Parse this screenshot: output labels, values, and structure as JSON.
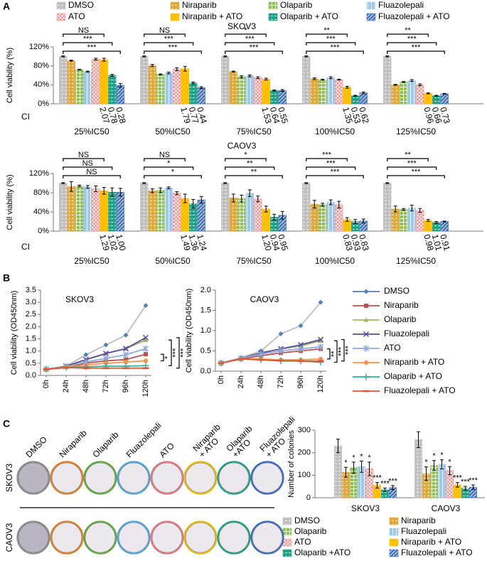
{
  "chart_data": [
    {
      "type": "bar",
      "panel": "A",
      "title": "SKOV3",
      "y_label": "Cell viability (%)",
      "ci_label": "CI",
      "legend": "top",
      "categories": [
        "25%IC50",
        "50%IC50",
        "75%IC50",
        "100%IC50",
        "125%IC50"
      ],
      "ylim": [
        0,
        120
      ],
      "yticks": [
        {
          "value": 0,
          "label": "0%"
        },
        {
          "value": 40,
          "label": "40%"
        },
        {
          "value": 80,
          "label": "80%"
        },
        {
          "value": 120,
          "label": "120%"
        }
      ],
      "series": [
        {
          "name": "DMSO",
          "color": "#c0c0c0",
          "pattern": "dots",
          "values": [
            100,
            100,
            100,
            100,
            100
          ],
          "errors": [
            1,
            1,
            1,
            1,
            1
          ]
        },
        {
          "name": "Niraparib",
          "color": "#e0a93b",
          "pattern": "dots",
          "values": [
            91,
            81,
            68,
            53,
            40
          ],
          "errors": [
            1,
            2,
            1,
            2,
            1
          ]
        },
        {
          "name": "Olaparib",
          "color": "#8cc152",
          "pattern": "grid",
          "values": [
            72,
            62,
            57,
            51,
            46
          ],
          "errors": [
            1,
            1,
            2,
            1,
            1
          ]
        },
        {
          "name": "Fluazolepali",
          "color": "#9cc8ee",
          "pattern": "vstripes",
          "values": [
            68,
            65,
            59,
            55,
            49
          ],
          "errors": [
            1,
            2,
            2,
            2,
            2
          ]
        },
        {
          "name": "ATO",
          "color": "#f28b8b",
          "pattern": "check",
          "values": [
            94,
            73,
            55,
            51,
            40
          ],
          "errors": [
            2,
            3,
            2,
            1,
            2
          ]
        },
        {
          "name": "Niraparib + ATO",
          "color": "#ffc000",
          "pattern": "solid",
          "values": [
            93,
            74,
            52,
            35,
            22
          ],
          "errors": [
            3,
            5,
            2,
            2,
            1
          ]
        },
        {
          "name": "Olaparib + ATO",
          "color": "#1ea387",
          "pattern": "dash",
          "values": [
            60,
            44,
            28,
            17,
            17
          ],
          "errors": [
            2,
            2,
            1,
            1,
            1
          ]
        },
        {
          "name": "Fluazolepali + ATO",
          "color": "#4472c4",
          "pattern": "diag",
          "values": [
            39,
            34,
            28,
            23,
            21
          ],
          "errors": [
            4,
            2,
            2,
            2,
            1
          ]
        }
      ],
      "ci_values": [
        [
          2.07,
          0.78,
          0.28
        ],
        [
          1.79,
          0.77,
          0.44
        ],
        [
          1.53,
          0.64,
          0.55
        ],
        [
          1.35,
          0.53,
          0.62
        ],
        [
          0.96,
          0.66,
          0.73
        ]
      ],
      "significance": [
        [
          "NS",
          "***",
          "***"
        ],
        [
          "NS",
          "***",
          "***"
        ],
        [
          "*",
          "***",
          "***"
        ],
        [
          "**",
          "***",
          "***"
        ],
        [
          "**",
          "***",
          "***"
        ]
      ]
    },
    {
      "type": "bar",
      "title": "CAOV3",
      "y_label": "Cell viability (%)",
      "ci_label": "CI",
      "categories": [
        "25%IC50",
        "50%IC50",
        "75%IC50",
        "100%IC50",
        "125%IC50"
      ],
      "ylim": [
        0,
        120
      ],
      "yticks": [
        {
          "value": 0,
          "label": "0%"
        },
        {
          "value": 40,
          "label": "40%"
        },
        {
          "value": 80,
          "label": "80%"
        },
        {
          "value": 120,
          "label": "120%"
        }
      ],
      "series": [
        {
          "color": "#c0c0c0",
          "pattern": "dots",
          "values": [
            100,
            100,
            100,
            100,
            100
          ],
          "errors": [
            1,
            1,
            1,
            1,
            1
          ]
        },
        {
          "color": "#e0a93b",
          "pattern": "dots",
          "values": [
            93,
            84,
            69,
            56,
            46
          ],
          "errors": [
            10,
            4,
            8,
            8,
            6
          ]
        },
        {
          "color": "#8cc152",
          "pattern": "grid",
          "values": [
            94,
            85,
            68,
            55,
            45
          ],
          "errors": [
            2,
            5,
            7,
            3,
            2
          ]
        },
        {
          "color": "#9cc8ee",
          "pattern": "vstripes",
          "values": [
            92,
            90,
            79,
            60,
            48
          ],
          "errors": [
            3,
            2,
            7,
            5,
            6
          ]
        },
        {
          "color": "#f28b8b",
          "pattern": "check",
          "values": [
            88,
            79,
            67,
            55,
            43
          ],
          "errors": [
            6,
            3,
            6,
            7,
            4
          ]
        },
        {
          "color": "#ffc000",
          "pattern": "solid",
          "values": [
            84,
            68,
            46,
            24,
            22
          ],
          "errors": [
            7,
            9,
            6,
            4,
            2
          ]
        },
        {
          "color": "#1ea387",
          "pattern": "dash",
          "values": [
            81,
            57,
            29,
            20,
            18
          ],
          "errors": [
            9,
            9,
            6,
            4,
            2
          ]
        },
        {
          "color": "#4472c4",
          "pattern": "diag",
          "values": [
            81,
            65,
            33,
            21,
            20
          ],
          "errors": [
            8,
            7,
            8,
            4,
            1
          ]
        }
      ],
      "ci_values": [
        [
          1.29,
          1.02,
          1
        ],
        [
          1.49,
          1.36,
          1.24
        ],
        [
          1.2,
          0.94,
          0.95
        ],
        [
          0.83,
          0.93,
          0.83
        ],
        [
          0.98,
          1.01,
          0.91
        ]
      ],
      "ci_value_labels": [
        [
          "1.29",
          "1.02",
          "1.00"
        ],
        [
          "1.49",
          "1.36",
          "1.24"
        ],
        [
          "1.20",
          "0.94",
          "0.95"
        ],
        [
          "0.83",
          "0.93",
          "0.83"
        ],
        [
          "0.98",
          "1.01",
          "0.91"
        ]
      ],
      "significance": [
        [
          "NS",
          "NS",
          "NS"
        ],
        [
          "NS",
          "*",
          "*"
        ],
        [
          "*",
          "**",
          "**"
        ],
        [
          "***",
          "***",
          "***"
        ],
        [
          "**",
          "***",
          "***"
        ]
      ]
    },
    {
      "type": "line",
      "panel": "B",
      "title": "SKOV3",
      "y_label": "Cell viability (OD450nm)",
      "legend": "right",
      "categories": [
        "0h",
        "24h",
        "48h",
        "72h",
        "96h",
        "120h"
      ],
      "ylim": [
        0,
        3.5
      ],
      "yticks": [
        {
          "value": 0,
          "label": "0.0"
        },
        0.5,
        {
          "value": 1,
          "label": "1.0"
        },
        1.5,
        {
          "value": 2,
          "label": "2.0"
        },
        2.5,
        {
          "value": 3,
          "label": "3.0"
        },
        3.5
      ],
      "series": [
        {
          "name": "DMSO",
          "color": "#4f81bd",
          "marker": "diamond",
          "values": [
            0.25,
            0.38,
            0.85,
            1.25,
            1.65,
            2.87
          ]
        },
        {
          "name": "Niraparib",
          "color": "#c0504d",
          "marker": "square",
          "values": [
            0.25,
            0.35,
            0.5,
            0.6,
            0.65,
            0.87
          ]
        },
        {
          "name": "Olaparib",
          "color": "#9bbb59",
          "marker": "triangle",
          "values": [
            0.25,
            0.38,
            0.65,
            0.9,
            1.1,
            1.45
          ]
        },
        {
          "name": "Fluazolepali",
          "color": "#5b4a9e",
          "marker": "x",
          "values": [
            0.25,
            0.38,
            0.65,
            0.9,
            1.1,
            1.55
          ]
        },
        {
          "name": "ATO",
          "color": "#8ea9db",
          "marker": "star",
          "values": [
            0.25,
            0.36,
            0.55,
            0.7,
            0.85,
            1.1
          ]
        },
        {
          "name": "Niraparib + ATO",
          "color": "#f79646",
          "marker": "circle",
          "values": [
            0.25,
            0.35,
            0.42,
            0.5,
            0.55,
            0.6
          ]
        },
        {
          "name": "Olaparib + ATO",
          "color": "#23b5a0",
          "marker": "plus",
          "values": [
            0.25,
            0.33,
            0.35,
            0.38,
            0.38,
            0.4
          ]
        },
        {
          "name": "Fluazolepali + ATO",
          "color": "#e8502e",
          "marker": "dash",
          "values": [
            0.25,
            0.32,
            0.3,
            0.3,
            0.3,
            0.3
          ]
        }
      ],
      "significance": [
        "*",
        "***",
        "***"
      ]
    },
    {
      "type": "line",
      "title": "CAOV3",
      "y_label": "Cell viability (OD450nm)",
      "categories": [
        "0h",
        "24h",
        "48h",
        "72h",
        "96h",
        "120h"
      ],
      "ylim": [
        0,
        2
      ],
      "yticks": [
        {
          "value": 0,
          "label": "0.0"
        },
        0.5,
        {
          "value": 1,
          "label": "1.0"
        },
        1.5,
        {
          "value": 2,
          "label": "2.0"
        }
      ],
      "series": [
        {
          "color": "#4f81bd",
          "marker": "diamond",
          "values": [
            0.2,
            0.33,
            0.5,
            0.92,
            1.12,
            1.7
          ]
        },
        {
          "color": "#c0504d",
          "marker": "square",
          "values": [
            0.2,
            0.3,
            0.38,
            0.45,
            0.5,
            0.55
          ]
        },
        {
          "color": "#9bbb59",
          "marker": "triangle",
          "values": [
            0.2,
            0.32,
            0.45,
            0.55,
            0.62,
            0.75
          ]
        },
        {
          "color": "#5b4a9e",
          "marker": "x",
          "values": [
            0.2,
            0.32,
            0.45,
            0.55,
            0.65,
            0.78
          ]
        },
        {
          "color": "#8ea9db",
          "marker": "star",
          "values": [
            0.2,
            0.32,
            0.42,
            0.5,
            0.55,
            0.6
          ]
        },
        {
          "color": "#f79646",
          "marker": "circle",
          "values": [
            0.2,
            0.3,
            0.3,
            0.28,
            0.28,
            0.3
          ]
        },
        {
          "color": "#23b5a0",
          "marker": "plus",
          "values": [
            0.2,
            0.3,
            0.28,
            0.25,
            0.25,
            0.22
          ]
        },
        {
          "color": "#e8502e",
          "marker": "dash",
          "values": [
            0.2,
            0.3,
            0.28,
            0.26,
            0.25,
            0.25
          ]
        }
      ],
      "significance": [
        "**",
        "***",
        "***"
      ]
    },
    {
      "type": "bar",
      "panel": "C",
      "y_label": "Number of colonies",
      "legend": "bottom",
      "categories": [
        "SKOV3",
        "CAOV3"
      ],
      "ylim": [
        0,
        300
      ],
      "yticks": [
        0,
        100,
        200,
        300
      ],
      "series": [
        {
          "name": "DMSO",
          "color": "#c0c0c0",
          "pattern": "dots",
          "values": [
            230,
            258
          ],
          "errors": [
            30,
            35
          ]
        },
        {
          "name": "Niraparib",
          "color": "#e0a93b",
          "pattern": "dots",
          "values": [
            113,
            107
          ],
          "errors": [
            22,
            30
          ]
        },
        {
          "name": "Olaparib",
          "color": "#8cc152",
          "pattern": "grid",
          "values": [
            133,
            143
          ],
          "errors": [
            25,
            22
          ]
        },
        {
          "name": "Fluazolepali",
          "color": "#9cc8ee",
          "pattern": "vstripes",
          "values": [
            138,
            148
          ],
          "errors": [
            25,
            20
          ]
        },
        {
          "name": "ATO",
          "color": "#f28b8b",
          "pattern": "check",
          "values": [
            128,
            120
          ],
          "errors": [
            30,
            18
          ]
        },
        {
          "name": "Niraparib + ATO",
          "color": "#ffc000",
          "pattern": "solid",
          "values": [
            55,
            57
          ],
          "errors": [
            12,
            10
          ]
        },
        {
          "name": "Olaparib +ATO",
          "color": "#1ea387",
          "pattern": "dash",
          "values": [
            35,
            42
          ],
          "errors": [
            8,
            8
          ]
        },
        {
          "name": "Fluazolepali + ATO",
          "color": "#4472c4",
          "pattern": "diag",
          "values": [
            45,
            47
          ],
          "errors": [
            9,
            10
          ]
        }
      ],
      "significance": [
        [
          null,
          "*",
          "*",
          "*",
          "*",
          "***",
          "***",
          "***"
        ],
        [
          null,
          "*",
          "*",
          "*",
          "*",
          "***",
          "***",
          "***"
        ]
      ]
    }
  ],
  "plates": {
    "columns": [
      [
        "DMSO"
      ],
      [
        "Niraparib"
      ],
      [
        "Olaparib"
      ],
      [
        "Fluazolepali"
      ],
      [
        "ATO"
      ],
      [
        "Niraparib",
        "+ ATO"
      ],
      [
        "Olaparib",
        "+ATO"
      ],
      [
        "Fluazolepali",
        "+ ATO"
      ]
    ],
    "rows": [
      "SKOV3",
      "CAOV3"
    ],
    "rim_colors": [
      "#8a8a8a",
      "#e07b20",
      "#5aa832",
      "#4aa3df",
      "#e8707a",
      "#e8b800",
      "#1c9e82",
      "#3a66c4"
    ]
  }
}
